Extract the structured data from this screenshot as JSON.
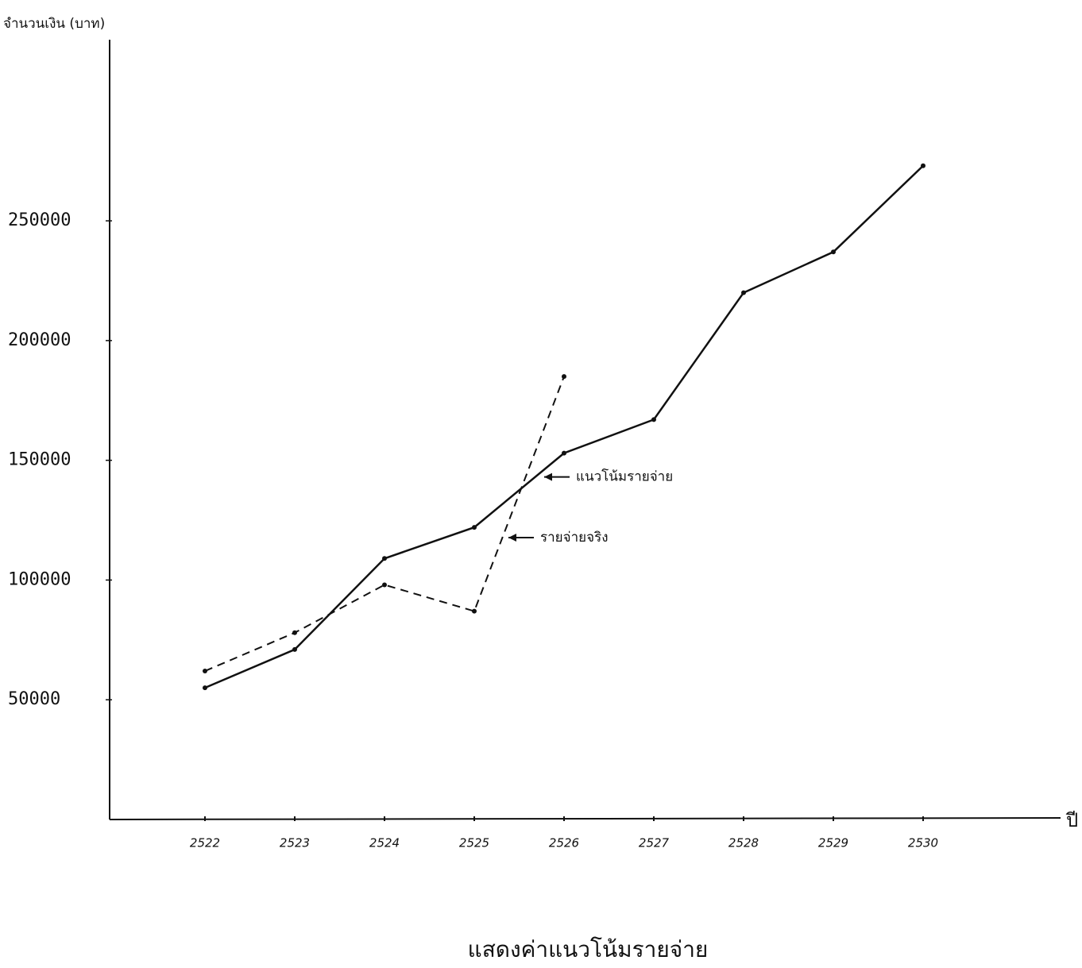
{
  "chart_data": {
    "type": "line",
    "title": "แสดงค่าแนวโน้มรายจ่าย",
    "y_label": "จำนวนเงิน (บาท)",
    "x_label": "ปี",
    "categories": [
      "2522",
      "2523",
      "2524",
      "2525",
      "2526",
      "2527",
      "2528",
      "2529",
      "2530"
    ],
    "series": [
      {
        "name": "แนวโน้มรายจ่าย",
        "color": "#111111",
        "dash": false,
        "values": [
          55000,
          71000,
          109000,
          122000,
          153000,
          167000,
          220000,
          237000,
          273000
        ]
      },
      {
        "name": "รายจ่ายจริง",
        "color": "#111111",
        "dash": true,
        "values": [
          62000,
          78000,
          98000,
          87000,
          185000,
          null,
          null,
          null,
          null
        ]
      }
    ],
    "ylim": [
      0,
      320000
    ],
    "yticks": [
      50000,
      100000,
      150000,
      200000,
      250000
    ],
    "grid": false
  }
}
